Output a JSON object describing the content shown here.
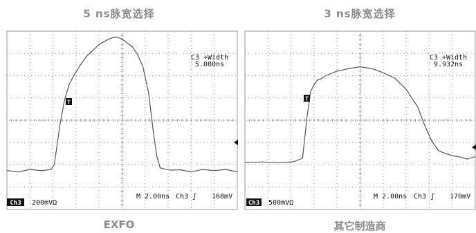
{
  "left": {
    "title": "5 ns脉宽选择",
    "caption": "EXFO",
    "meas_label": "C3 +Width",
    "meas_value": "5.080ns",
    "trigger_marker": "T",
    "channel_tag": "Ch3",
    "scale_text": "200mVΩ",
    "timebase_text": "M 2.00ns",
    "trig_source_text": "Ch3 ʃ",
    "trig_level_text": "168mV"
  },
  "right": {
    "title": "3 ns脉宽选择",
    "caption": "其它制造商",
    "meas_label": "C3 +Width",
    "meas_value": "9.932ns",
    "trigger_marker": "T",
    "channel_tag": "Ch3",
    "scale_text": "500mVΩ",
    "timebase_text": "M 2.00ns",
    "trig_source_text": "Ch3 ʃ",
    "trig_level_text": "170mV"
  },
  "chart_data": [
    {
      "type": "line",
      "title": "5 ns脉宽选择",
      "xlabel": "",
      "ylabel": "",
      "x_unit": "ns",
      "timebase_per_div": "2.00ns",
      "volts_per_div": "200mV",
      "xlim": [
        0,
        20
      ],
      "ylim": [
        -4,
        4
      ],
      "grid": true,
      "annotation": "C3 +Width 5.080ns",
      "series": [
        {
          "x": [
            0.0,
            1.0,
            2.0,
            3.0,
            3.8,
            4.1,
            4.3,
            4.6,
            5.0,
            5.4,
            5.8,
            6.4,
            6.9,
            7.4,
            8.0,
            8.5,
            8.8,
            9.1,
            9.5,
            10.0,
            10.4,
            10.9,
            11.3,
            11.8,
            12.3,
            12.7,
            13.0,
            13.3,
            13.7,
            14.2,
            15.0,
            16.0,
            17.0,
            18.0,
            19.0,
            20.0
          ],
          "y": [
            -2.25,
            -2.3,
            -2.2,
            -2.25,
            -2.2,
            -2.0,
            -1.3,
            -0.2,
            0.9,
            1.6,
            2.0,
            2.5,
            2.85,
            3.1,
            3.4,
            3.55,
            3.65,
            3.7,
            3.75,
            3.65,
            3.5,
            3.3,
            3.0,
            2.4,
            1.2,
            -0.5,
            -1.6,
            -2.15,
            -2.2,
            -2.25,
            -2.2,
            -2.3,
            -2.2,
            -2.25,
            -2.2,
            -2.3
          ]
        }
      ]
    },
    {
      "type": "line",
      "title": "3 ns脉宽选择",
      "xlabel": "",
      "ylabel": "",
      "x_unit": "ns",
      "timebase_per_div": "2.00ns",
      "volts_per_div": "500mV",
      "xlim": [
        0,
        20
      ],
      "ylim": [
        -4,
        4
      ],
      "grid": true,
      "annotation": "C3 +Width 9.932ns",
      "series": [
        {
          "x": [
            0.0,
            1.5,
            3.0,
            4.2,
            5.0,
            5.4,
            5.7,
            6.0,
            6.3,
            6.6,
            7.0,
            8.0,
            9.0,
            10.0,
            10.6,
            11.2,
            12.0,
            13.0,
            14.0,
            15.0,
            15.6,
            16.2,
            16.8,
            17.4,
            18.0,
            18.6,
            19.3,
            20.0
          ],
          "y": [
            -1.9,
            -1.85,
            -1.9,
            -1.85,
            -1.7,
            0.2,
            1.3,
            1.6,
            1.8,
            1.85,
            2.0,
            2.2,
            2.3,
            2.4,
            2.35,
            2.3,
            2.15,
            1.9,
            1.4,
            0.6,
            -0.2,
            -0.9,
            -1.35,
            -1.5,
            -1.6,
            -1.65,
            -1.75,
            -1.65
          ]
        }
      ]
    }
  ]
}
